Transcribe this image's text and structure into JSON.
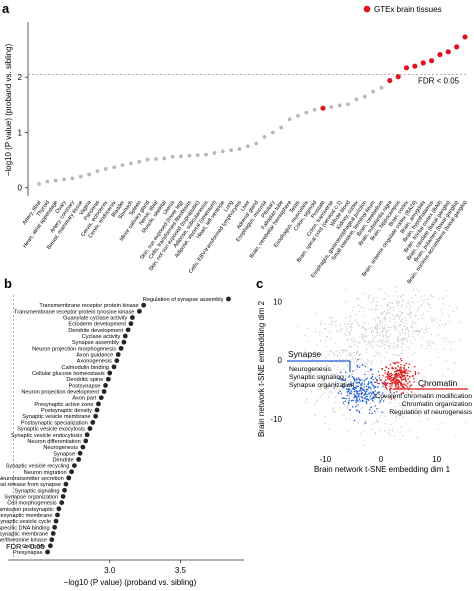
{
  "chart_data": [
    {
      "panel": "a",
      "type": "scatter",
      "ylabel": "−log10 (P value) (proband vs. sibling)",
      "xlabel": "",
      "legend": "GTEx brain tissues",
      "legend_position": "top-right",
      "threshold": {
        "value": 2.05,
        "label": "FDR < 0.05"
      },
      "ylim": [
        -0.15,
        3.0
      ],
      "yticks": [
        0,
        1,
        2
      ],
      "colors": {
        "gray": "#b8b8b8",
        "brain": "#e0141e"
      },
      "categories": [
        "Artery, tibial",
        "Thyroid",
        "Heart, atrial appendage",
        "Ovary",
        "Artery, coronary",
        "Breast, mammary tissue",
        "Vagina",
        "Pancreas",
        "Cervix, ectocervix",
        "Cervix, endocervix",
        "Bladder",
        "Stomach",
        "Spleen",
        "Minor salivary gland",
        "Nerve, tibial",
        "Muscle, skeletal",
        "Uterus",
        "Skin, sun exposed (lower leg)",
        "Cells, transformed fibroblasts",
        "Skin, not sun exposed (suprapubic)",
        "Adipose, subcutaneous",
        "Adipose, visceral (omentum)",
        "Heart, left ventricle",
        "Lung",
        "Cells, EBV-transformed lymphocytes",
        "Liver",
        "Adrenal gland",
        "Esophagus, mucosa",
        "Pituitary",
        "Fallopian tube",
        "Brain, cerebellar hemisphere",
        "Testis",
        "Esophagus, muscularis",
        "Colon, sigmoid",
        "Prostate",
        "Colon, transverse",
        "Brain, spinal cord (cervical c-1)",
        "Whole blood",
        "Kidney, cortex",
        "Esophagus, gastroesophageal junction",
        "Small intestine, terminal ileum",
        "Brain, cerebellum",
        "Brain, substantia nigra",
        "Brain, hippocampus",
        "Brain, cortex",
        "Brain, anterior cingulate cortex (BA24)",
        "Brain, amygdala",
        "Brain, hypothalamus",
        "Brain, frontal cortex (BA9)",
        "Brain, caudate (basal ganglia)",
        "Brain, putamen (basal ganglia)",
        "Brain, nucleus accumbens (basal ganglia)"
      ],
      "values": [
        0.07,
        0.11,
        0.13,
        0.15,
        0.17,
        0.2,
        0.24,
        0.3,
        0.34,
        0.37,
        0.41,
        0.44,
        0.47,
        0.51,
        0.52,
        0.53,
        0.56,
        0.57,
        0.58,
        0.59,
        0.6,
        0.63,
        0.66,
        0.68,
        0.7,
        0.75,
        0.8,
        0.92,
        1.0,
        1.09,
        1.24,
        1.3,
        1.36,
        1.41,
        1.44,
        1.46,
        1.49,
        1.51,
        1.6,
        1.65,
        1.74,
        1.81,
        1.94,
        2.01,
        2.17,
        2.2,
        2.26,
        2.3,
        2.41,
        2.46,
        2.55,
        2.73
      ],
      "brain": [
        false,
        false,
        false,
        false,
        false,
        false,
        false,
        false,
        false,
        false,
        false,
        false,
        false,
        false,
        false,
        false,
        false,
        false,
        false,
        false,
        false,
        false,
        false,
        false,
        false,
        false,
        false,
        false,
        false,
        false,
        false,
        false,
        false,
        false,
        true,
        false,
        false,
        false,
        false,
        false,
        false,
        false,
        true,
        true,
        true,
        true,
        true,
        true,
        true,
        true,
        true,
        true
      ]
    },
    {
      "panel": "b",
      "type": "scatter",
      "xlabel": "−log10 (P value) (proband vs. sibling)",
      "ylabel": "",
      "threshold": {
        "value": 2.32,
        "label": "FDR < 0.05"
      },
      "xlim": [
        2.28,
        3.95
      ],
      "xticks": [
        3.0,
        3.5
      ],
      "color": "#262626",
      "terms": [
        "Regulation of synapse assembly",
        "Transmembrane receptor protein kinase",
        "Transmembrane receptor protein tyrosine kinase",
        "Guanylate cyclase activity",
        "Ectoderm development",
        "Dendrite development",
        "Cyclase activity",
        "Synapse assembly",
        "Neuron projection morphogenesis",
        "Axon guidance",
        "Axonogenesis",
        "Calmodulin binding",
        "Cellular glucose homeostasis",
        "Dendritic spine",
        "Postsynapse",
        "Neuron projection development",
        "Axon part",
        "Presynaptic active zone",
        "Postsynaptic density",
        "Synaptic vesicle membrane",
        "Postsynaptic specialization",
        "Synaptic vesicle exocytosis",
        "Synaptic vesicle endocytosis",
        "Neuron differentiation",
        "Neurogenesis",
        "Synapse",
        "Dendrite",
        "Synaptic vesicle recycling",
        "Neuron migration",
        "Neurotransmitter secretion",
        "Signal release from synapse",
        "Synaptic signaling",
        "Synapse organization",
        "Cell morphogenesis",
        "Chemical synaptic transmission postsynaptic",
        "Presynaptic membrane",
        "Synaptic vesicle cycle",
        "RNA polymerase II transcription factor activity sequence-specific DNA binding",
        "Postsynaptic membrane",
        "Transmembrane receptor protein serine/threonine kinase",
        "Cell body",
        "Presynapse"
      ],
      "values": [
        3.84,
        3.24,
        3.21,
        3.16,
        3.15,
        3.13,
        3.11,
        3.1,
        3.08,
        3.06,
        3.05,
        3.03,
        3.0,
        2.99,
        2.97,
        2.96,
        2.94,
        2.92,
        2.91,
        2.9,
        2.88,
        2.86,
        2.84,
        2.83,
        2.81,
        2.79,
        2.78,
        2.75,
        2.73,
        2.71,
        2.69,
        2.68,
        2.67,
        2.66,
        2.64,
        2.63,
        2.62,
        2.61,
        2.6,
        2.59,
        2.58,
        2.56
      ]
    },
    {
      "panel": "c",
      "type": "scatter",
      "xlabel": "Brain network t-SNE embedding dim 1",
      "ylabel": "Brain network t-SNE embedding dim 2",
      "xlim": [
        -16,
        16
      ],
      "ylim": [
        -16,
        13
      ],
      "xticks": [
        -10,
        0,
        10
      ],
      "yticks": [
        -10,
        0,
        10
      ],
      "colors": {
        "background": "#cfcfcf",
        "synapse": "#1f5fd0",
        "chromatin": "#e01919"
      },
      "clusters": [
        {
          "name": "Synapse",
          "color": "#1f5fd0",
          "center": [
            -3.5,
            -5.0
          ],
          "spread": [
            2.0,
            1.8
          ],
          "terms": [
            "Neurogenesis",
            "Synaptic signaling",
            "Synapse organization"
          ]
        },
        {
          "name": "Chromatin",
          "color": "#e01919",
          "center": [
            3.2,
            -3.0
          ],
          "spread": [
            1.6,
            1.2
          ],
          "terms": [
            "Covalent chromatin modification",
            "Chromatin organization",
            "Regulation of neurogenesis"
          ]
        }
      ]
    }
  ],
  "panel_labels": {
    "a": "a",
    "b": "b",
    "c": "c"
  }
}
